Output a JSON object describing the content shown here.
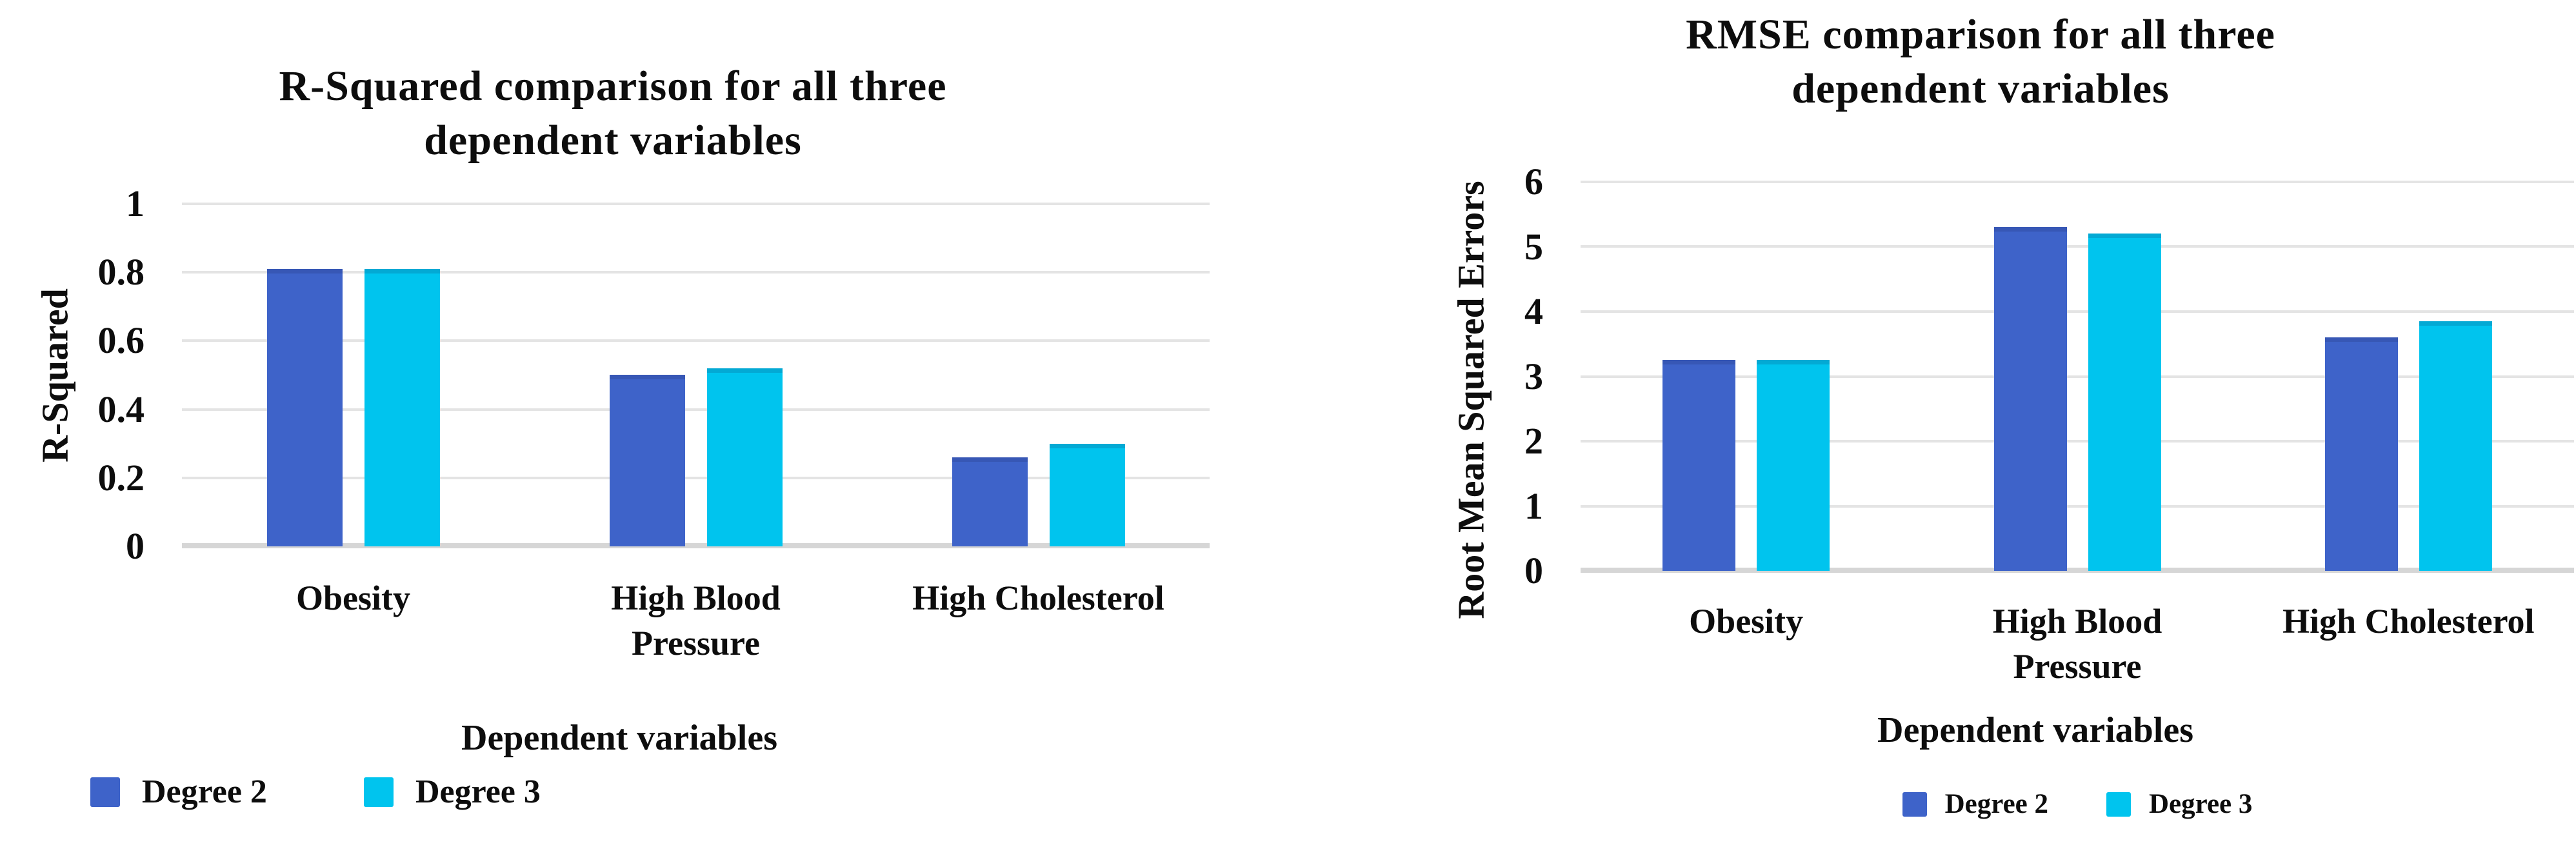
{
  "page": {
    "background": "#ffffff"
  },
  "colors": {
    "series_degree2": "#3e63c9",
    "series_degree3": "#00c4ee",
    "gridline": "#e4e4e4",
    "baseline": "#d6d6d6",
    "text": "#0d0d0d"
  },
  "chart_data": [
    {
      "type": "bar",
      "title": "R-Squared comparison for all three\ndependent variables",
      "ylabel": "R-Squared",
      "xlabel": "Dependent variables",
      "categories": [
        "Obesity",
        "High Blood\nPressure",
        "High Cholesterol"
      ],
      "series": [
        {
          "name": "Degree 2",
          "color": "#3e63c9",
          "values": [
            0.81,
            0.5,
            0.26
          ]
        },
        {
          "name": "Degree 3",
          "color": "#00c4ee",
          "values": [
            0.81,
            0.52,
            0.3
          ]
        }
      ],
      "ylim": [
        0,
        1
      ],
      "yticks": [
        0,
        0.2,
        0.4,
        0.6,
        0.8,
        1
      ],
      "grid": true,
      "legend_position": "bottom-left"
    },
    {
      "type": "bar",
      "title": "RMSE comparison for all three\ndependent variables",
      "ylabel": "Root Mean Squared Errors",
      "xlabel": "Dependent variables",
      "categories": [
        "Obesity",
        "High Blood\nPressure",
        "High Cholesterol"
      ],
      "series": [
        {
          "name": "Degree 2",
          "color": "#3e63c9",
          "values": [
            3.25,
            5.3,
            3.6
          ]
        },
        {
          "name": "Degree 3",
          "color": "#00c4ee",
          "values": [
            3.25,
            5.2,
            3.85
          ]
        }
      ],
      "ylim": [
        0,
        6
      ],
      "yticks": [
        0,
        1,
        2,
        3,
        4,
        5,
        6
      ],
      "grid": true,
      "legend_position": "bottom-center"
    }
  ]
}
